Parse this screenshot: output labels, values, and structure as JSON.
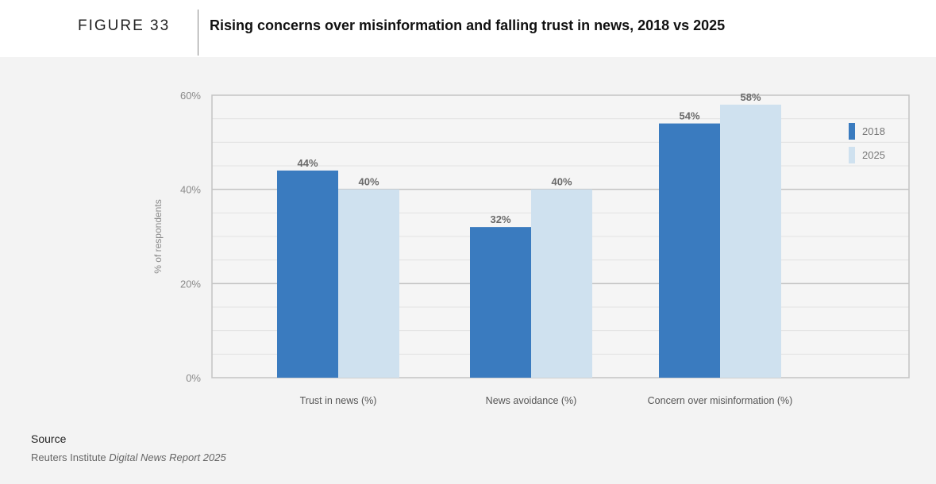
{
  "header": {
    "figure_label": "FIGURE 33",
    "title": "Rising concerns over misinformation and falling trust in news, 2018 vs 2025"
  },
  "source": {
    "heading": "Source",
    "text_prefix": "Reuters Institute ",
    "text_italic": "Digital News Report 2025"
  },
  "chart_data": {
    "type": "bar",
    "title": "Rising concerns over misinformation and falling trust in news, 2018 vs 2025",
    "xlabel": "",
    "ylabel": "% of respondents",
    "ylim": [
      0,
      60
    ],
    "yticks": [
      0,
      20,
      40,
      60
    ],
    "ytick_labels": [
      "0%",
      "20%",
      "40%",
      "60%"
    ],
    "grid": true,
    "legend_position": "right",
    "categories": [
      "Trust in news (%)",
      "News avoidance (%)",
      "Concern over misinformation (%)"
    ],
    "series": [
      {
        "name": "2018",
        "color": "#3a7bbf",
        "values": [
          44,
          32,
          54
        ]
      },
      {
        "name": "2025",
        "color": "#cfe1ef",
        "values": [
          40,
          40,
          58
        ]
      }
    ]
  }
}
